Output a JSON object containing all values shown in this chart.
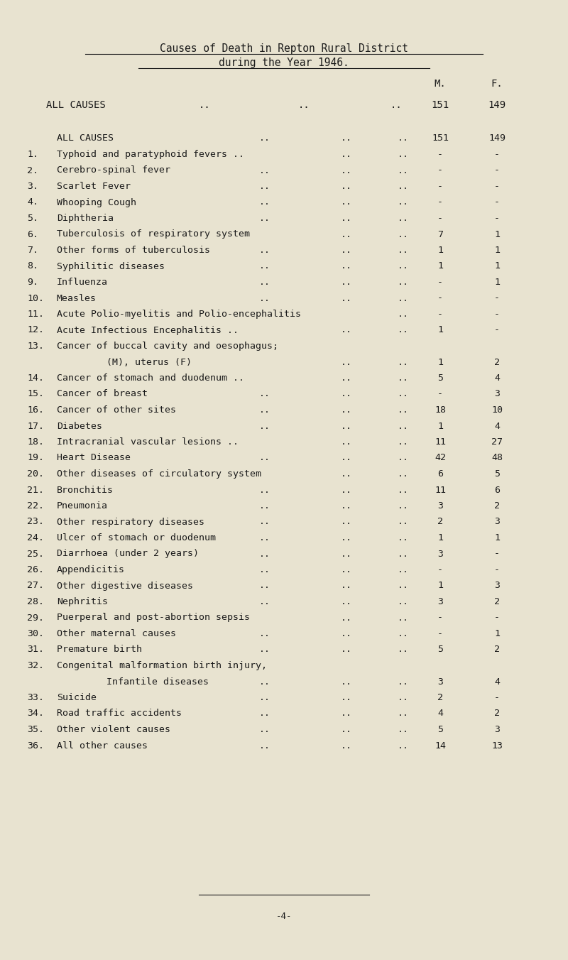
{
  "title_line1": "Causes of Death in Repton Rural District",
  "title_line2": "during the Year 1946.",
  "bg_color": "#e8e3d0",
  "text_color": "#1a1a1a",
  "font_family": "DejaVu Sans Mono",
  "rows": [
    {
      "num": "",
      "label": "ALL CAUSES",
      "dots3": true,
      "m": "151",
      "f": "149",
      "indent": false,
      "space_after": true
    },
    {
      "num": "1.",
      "label": "Typhoid and paratyphoid fevers ..",
      "dots2": true,
      "m": "-",
      "f": "-",
      "indent": false,
      "space_after": false
    },
    {
      "num": "2.",
      "label": "Cerebro-spinal fever",
      "dots3": true,
      "m": "-",
      "f": "-",
      "indent": false,
      "space_after": false
    },
    {
      "num": "3.",
      "label": "Scarlet Fever",
      "dots3": true,
      "m": "-",
      "f": "-",
      "indent": false,
      "space_after": false
    },
    {
      "num": "4.",
      "label": "Whooping Cough",
      "dots3": true,
      "m": "-",
      "f": "-",
      "indent": false,
      "space_after": false
    },
    {
      "num": "5.",
      "label": "Diphtheria",
      "dots3": true,
      "m": "-",
      "f": "-",
      "indent": false,
      "space_after": false
    },
    {
      "num": "6.",
      "label": "Tuberculosis of respiratory system",
      "dots2": true,
      "m": "7",
      "f": "1",
      "indent": false,
      "space_after": false
    },
    {
      "num": "7.",
      "label": "Other forms of tuberculosis",
      "dots3": true,
      "m": "1",
      "f": "1",
      "indent": false,
      "space_after": false
    },
    {
      "num": "8.",
      "label": "Syphilitic diseases",
      "dots3": true,
      "m": "1",
      "f": "1",
      "indent": false,
      "space_after": false
    },
    {
      "num": "9.",
      "label": "Influenza",
      "dots3": true,
      "m": "-",
      "f": "1",
      "indent": false,
      "space_after": false
    },
    {
      "num": "10.",
      "label": "Measles",
      "dots3": true,
      "m": "-",
      "f": "-",
      "indent": false,
      "space_after": false
    },
    {
      "num": "11.",
      "label": "Acute Polio-myelitis and Polio-encephalitis",
      "dots1": true,
      "m": "-",
      "f": "-",
      "indent": false,
      "space_after": false
    },
    {
      "num": "12.",
      "label": "Acute Infectious Encephalitis ..",
      "dots2": true,
      "m": "1",
      "f": "-",
      "indent": false,
      "space_after": false
    },
    {
      "num": "13.",
      "label": "Cancer of buccal cavity and oesophagus;",
      "dots0": true,
      "m": "",
      "f": "",
      "indent": false,
      "space_after": false
    },
    {
      "num": "",
      "label": "(M), uterus (F)",
      "dots2": true,
      "m": "1",
      "f": "2",
      "indent": true,
      "space_after": false
    },
    {
      "num": "14.",
      "label": "Cancer of stomach and duodenum ..",
      "dots2": true,
      "m": "5",
      "f": "4",
      "indent": false,
      "space_after": false
    },
    {
      "num": "15.",
      "label": "Cancer of breast",
      "dots3": true,
      "m": "-",
      "f": "3",
      "indent": false,
      "space_after": false
    },
    {
      "num": "16.",
      "label": "Cancer of other sites",
      "dots3": true,
      "m": "18",
      "f": "10",
      "indent": false,
      "space_after": false
    },
    {
      "num": "17.",
      "label": "Diabetes",
      "dots3": true,
      "m": "1",
      "f": "4",
      "indent": false,
      "space_after": false
    },
    {
      "num": "18.",
      "label": "Intracranial vascular lesions ..",
      "dots2": true,
      "m": "11",
      "f": "27",
      "indent": false,
      "space_after": false
    },
    {
      "num": "19.",
      "label": "Heart Disease",
      "dots3": true,
      "m": "42",
      "f": "48",
      "indent": false,
      "space_after": false
    },
    {
      "num": "20.",
      "label": "Other diseases of circulatory system",
      "dots2": true,
      "m": "6",
      "f": "5",
      "indent": false,
      "space_after": false
    },
    {
      "num": "21.",
      "label": "Bronchitis",
      "dots3": true,
      "m": "11",
      "f": "6",
      "indent": false,
      "space_after": false
    },
    {
      "num": "22.",
      "label": "Pneumonia",
      "dots3": true,
      "m": "3",
      "f": "2",
      "indent": false,
      "space_after": false
    },
    {
      "num": "23.",
      "label": "Other respiratory diseases",
      "dots3": true,
      "m": "2",
      "f": "3",
      "indent": false,
      "space_after": false
    },
    {
      "num": "24.",
      "label": "Ulcer of stomach or duodenum",
      "dots3": true,
      "m": "1",
      "f": "1",
      "indent": false,
      "space_after": false
    },
    {
      "num": "25.",
      "label": "Diarrhoea (under 2 years)",
      "dots3": true,
      "m": "3",
      "f": "-",
      "indent": false,
      "space_after": false
    },
    {
      "num": "26.",
      "label": "Appendicitis",
      "dots3": true,
      "m": "-",
      "f": "-",
      "indent": false,
      "space_after": false
    },
    {
      "num": "27.",
      "label": "Other digestive diseases",
      "dots3": true,
      "m": "1",
      "f": "3",
      "indent": false,
      "space_after": false
    },
    {
      "num": "28.",
      "label": "Nephritis",
      "dots3": true,
      "m": "3",
      "f": "2",
      "indent": false,
      "space_after": false
    },
    {
      "num": "29.",
      "label": "Puerperal and post-abortion sepsis",
      "dots2": true,
      "m": "-",
      "f": "-",
      "indent": false,
      "space_after": false
    },
    {
      "num": "30.",
      "label": "Other maternal causes",
      "dots3": true,
      "m": "-",
      "f": "1",
      "indent": false,
      "space_after": false
    },
    {
      "num": "31.",
      "label": "Premature birth",
      "dots3": true,
      "m": "5",
      "f": "2",
      "indent": false,
      "space_after": false
    },
    {
      "num": "32.",
      "label": "Congenital malformation birth injury,",
      "dots0": true,
      "m": "",
      "f": "",
      "indent": false,
      "space_after": false
    },
    {
      "num": "",
      "label": "Infantile diseases",
      "dots3": true,
      "m": "3",
      "f": "4",
      "indent": true,
      "space_after": false
    },
    {
      "num": "33.",
      "label": "Suicide",
      "dots3": true,
      "m": "2",
      "f": "-",
      "indent": false,
      "space_after": false
    },
    {
      "num": "34.",
      "label": "Road traffic accidents",
      "dots3": true,
      "m": "4",
      "f": "2",
      "indent": false,
      "space_after": false
    },
    {
      "num": "35.",
      "label": "Other violent causes",
      "dots3": true,
      "m": "5",
      "f": "3",
      "indent": false,
      "space_after": false
    },
    {
      "num": "36.",
      "label": "All other causes",
      "dots3": true,
      "m": "14",
      "f": "13",
      "indent": false,
      "space_after": false
    }
  ],
  "footer": "-4-"
}
